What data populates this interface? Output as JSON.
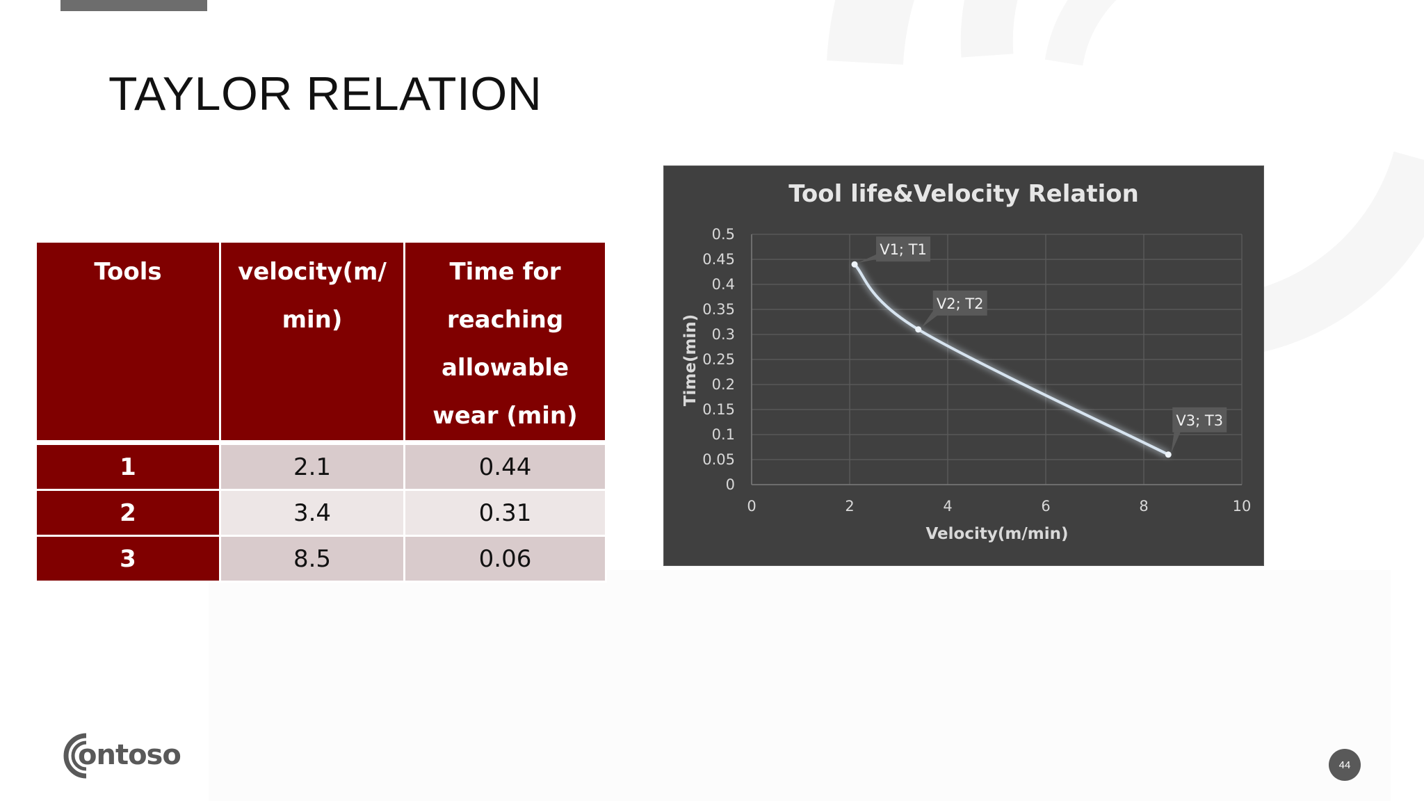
{
  "slide": {
    "title": "TAYLOR RELATION",
    "page_number": "44",
    "logo_text": "contoso"
  },
  "table": {
    "headers": [
      "Tools",
      "velocity(m/min)",
      "Time for reaching allowable wear (min)"
    ],
    "rows": [
      {
        "tool": "1",
        "velocity": "2.1",
        "time": "0.44"
      },
      {
        "tool": "2",
        "velocity": "3.4",
        "time": "0.31"
      },
      {
        "tool": "3",
        "velocity": "8.5",
        "time": "0.06"
      }
    ]
  },
  "colors": {
    "table_header": "#800000",
    "row_light": "#ede6e6",
    "row_dark": "#d9cbcc",
    "chart_background": "#404040",
    "series_line": "#d7e4f0"
  },
  "chart_data": {
    "type": "scatter",
    "title": "Tool life&Velocity Relation",
    "xlabel": "Velocity(m/min)",
    "ylabel": "Time(min)",
    "xlim": [
      0,
      10
    ],
    "ylim": [
      0,
      0.5
    ],
    "x_ticks": [
      "0",
      "2",
      "4",
      "6",
      "8",
      "10"
    ],
    "y_ticks": [
      "0",
      "0.05",
      "0.1",
      "0.15",
      "0.2",
      "0.25",
      "0.3",
      "0.35",
      "0.4",
      "0.45",
      "0.5"
    ],
    "grid": true,
    "smooth_line": true,
    "series": [
      {
        "points": [
          {
            "x": 2.1,
            "y": 0.44,
            "label": "V1; T1"
          },
          {
            "x": 3.4,
            "y": 0.31,
            "label": "V2; T2"
          },
          {
            "x": 8.5,
            "y": 0.06,
            "label": "V3; T3"
          }
        ]
      }
    ]
  }
}
